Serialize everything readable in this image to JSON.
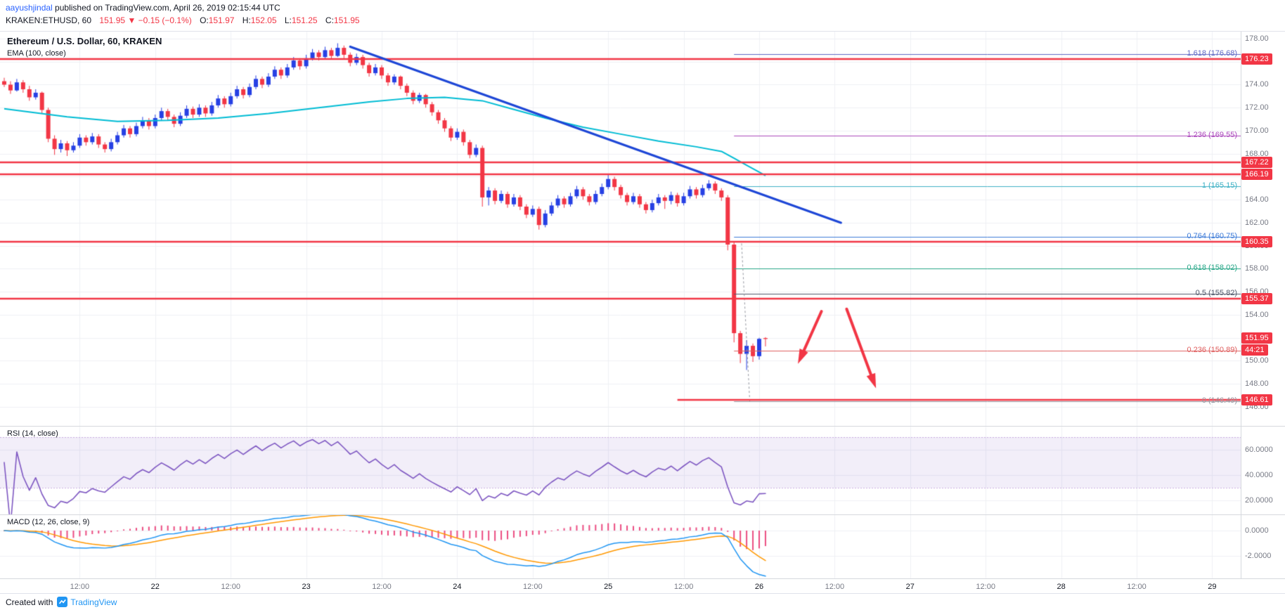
{
  "header": {
    "author": "aayushjindal",
    "published_text": " published on TradingView.com, April 26, 2019 02:15:44 UTC",
    "symbol_line": {
      "symbol": "KRAKEN:ETHUSD, 60",
      "last_price": "151.95",
      "direction_icon": "▼",
      "change": "−0.15 (−0.1%)",
      "ohlc": [
        {
          "label": "O:",
          "value": "151.97"
        },
        {
          "label": "H:",
          "value": "152.05"
        },
        {
          "label": "L:",
          "value": "151.25"
        },
        {
          "label": "C:",
          "value": "151.95"
        }
      ]
    }
  },
  "legend": {
    "title": "Ethereum / U.S. Dollar, 60, KRAKEN",
    "indicator": "EMA (100, close)",
    "rsi": "RSI (14, close)",
    "macd": "MACD (12, 26, close, 9)"
  },
  "footer": {
    "created_with": "Created with",
    "brand": "TradingView"
  },
  "chart_data": {
    "type": "candlestick",
    "symbol": "KRAKEN:ETHUSD",
    "interval": "60",
    "price_range": [
      144.3,
      178.6
    ],
    "colors": {
      "up": "#2640e4",
      "down": "#f23645",
      "ema": "#00bcd4",
      "trend": "#1d46d6",
      "level": "#f23645",
      "rsi": "#7e57c2",
      "macd": "#2196f3",
      "signal": "#ff9800",
      "hist": "#ec4d82",
      "tag_bg": "#f23645"
    },
    "candles": [
      [
        174.3,
        174.6,
        173.8,
        174.0
      ],
      [
        174.0,
        174.3,
        173.2,
        173.5
      ],
      [
        173.5,
        174.5,
        173.4,
        174.2
      ],
      [
        174.2,
        174.4,
        173.3,
        173.6
      ],
      [
        173.6,
        173.9,
        172.6,
        172.9
      ],
      [
        172.9,
        173.6,
        172.7,
        173.3
      ],
      [
        173.3,
        173.4,
        171.5,
        171.8
      ],
      [
        171.8,
        172.0,
        169.0,
        169.3
      ],
      [
        169.3,
        169.6,
        167.9,
        168.4
      ],
      [
        168.4,
        169.2,
        168.1,
        168.9
      ],
      [
        168.9,
        169.1,
        167.8,
        168.3
      ],
      [
        168.3,
        169.0,
        168.1,
        168.7
      ],
      [
        168.7,
        169.7,
        168.5,
        169.4
      ],
      [
        169.4,
        169.6,
        168.7,
        169.0
      ],
      [
        169.0,
        169.8,
        168.8,
        169.5
      ],
      [
        169.5,
        169.7,
        168.5,
        168.8
      ],
      [
        168.8,
        169.0,
        168.1,
        168.4
      ],
      [
        168.4,
        169.3,
        168.2,
        169.0
      ],
      [
        169.0,
        169.9,
        168.8,
        169.6
      ],
      [
        169.6,
        170.5,
        169.4,
        170.2
      ],
      [
        170.2,
        170.4,
        169.4,
        169.7
      ],
      [
        169.7,
        170.7,
        169.5,
        170.4
      ],
      [
        170.4,
        171.2,
        170.2,
        170.9
      ],
      [
        170.9,
        171.1,
        170.1,
        170.4
      ],
      [
        170.4,
        171.4,
        170.2,
        171.1
      ],
      [
        171.1,
        172.0,
        170.9,
        171.7
      ],
      [
        171.7,
        171.9,
        170.9,
        171.2
      ],
      [
        171.2,
        171.4,
        170.3,
        170.6
      ],
      [
        170.6,
        171.6,
        170.4,
        171.3
      ],
      [
        171.3,
        172.2,
        171.1,
        171.9
      ],
      [
        171.9,
        172.1,
        171.1,
        171.4
      ],
      [
        171.4,
        172.3,
        171.2,
        172.0
      ],
      [
        172.0,
        172.2,
        171.2,
        171.5
      ],
      [
        171.5,
        172.5,
        171.3,
        172.2
      ],
      [
        172.2,
        173.1,
        172.0,
        172.8
      ],
      [
        172.8,
        173.0,
        172.0,
        172.3
      ],
      [
        172.3,
        173.3,
        172.1,
        173.0
      ],
      [
        173.0,
        173.9,
        172.8,
        173.6
      ],
      [
        173.6,
        173.8,
        172.8,
        173.1
      ],
      [
        173.1,
        174.1,
        172.9,
        173.8
      ],
      [
        173.8,
        174.8,
        173.6,
        174.5
      ],
      [
        174.5,
        174.7,
        173.7,
        174.0
      ],
      [
        174.0,
        175.0,
        173.8,
        174.7
      ],
      [
        174.7,
        175.6,
        174.5,
        175.3
      ],
      [
        175.3,
        175.5,
        174.5,
        174.8
      ],
      [
        174.8,
        175.8,
        174.6,
        175.5
      ],
      [
        175.5,
        176.4,
        175.3,
        176.1
      ],
      [
        176.1,
        176.3,
        175.3,
        175.6
      ],
      [
        175.6,
        176.6,
        175.4,
        176.3
      ],
      [
        176.3,
        177.1,
        176.1,
        176.8
      ],
      [
        176.8,
        177.0,
        176.1,
        176.4
      ],
      [
        176.4,
        177.3,
        176.2,
        177.0
      ],
      [
        177.0,
        177.2,
        176.2,
        176.5
      ],
      [
        176.5,
        177.6,
        176.4,
        177.2
      ],
      [
        177.2,
        177.4,
        176.3,
        176.6
      ],
      [
        176.6,
        176.8,
        175.6,
        175.9
      ],
      [
        175.9,
        176.7,
        175.7,
        176.4
      ],
      [
        176.4,
        176.6,
        175.4,
        175.7
      ],
      [
        175.7,
        175.9,
        174.7,
        175.0
      ],
      [
        175.0,
        175.8,
        174.8,
        175.5
      ],
      [
        175.5,
        175.7,
        174.5,
        174.8
      ],
      [
        174.8,
        175.0,
        173.9,
        174.2
      ],
      [
        174.2,
        174.9,
        174.0,
        174.7
      ],
      [
        174.7,
        174.8,
        173.6,
        173.9
      ],
      [
        173.9,
        174.1,
        173.0,
        173.3
      ],
      [
        173.3,
        173.5,
        172.3,
        172.6
      ],
      [
        172.6,
        173.3,
        172.4,
        173.1
      ],
      [
        173.1,
        173.2,
        172.0,
        172.3
      ],
      [
        172.3,
        172.5,
        171.3,
        171.6
      ],
      [
        171.6,
        171.8,
        170.6,
        170.9
      ],
      [
        170.9,
        171.1,
        169.9,
        170.2
      ],
      [
        170.2,
        170.4,
        169.1,
        169.4
      ],
      [
        169.4,
        170.2,
        169.2,
        169.9
      ],
      [
        169.9,
        170.1,
        168.7,
        169.0
      ],
      [
        169.0,
        169.2,
        167.6,
        167.9
      ],
      [
        167.9,
        168.8,
        167.7,
        168.5
      ],
      [
        168.5,
        168.7,
        163.4,
        164.2
      ],
      [
        164.2,
        165.1,
        163.5,
        164.8
      ],
      [
        164.8,
        165.0,
        163.6,
        163.9
      ],
      [
        163.9,
        164.8,
        163.7,
        164.5
      ],
      [
        164.5,
        164.7,
        163.3,
        163.6
      ],
      [
        163.6,
        164.5,
        163.4,
        164.2
      ],
      [
        164.2,
        164.4,
        163.1,
        163.4
      ],
      [
        163.4,
        163.6,
        162.4,
        162.7
      ],
      [
        162.7,
        163.5,
        162.5,
        163.2
      ],
      [
        163.2,
        163.4,
        161.4,
        161.8
      ],
      [
        161.8,
        163.1,
        161.6,
        162.8
      ],
      [
        162.8,
        163.8,
        162.6,
        163.5
      ],
      [
        163.5,
        164.4,
        163.3,
        164.1
      ],
      [
        164.1,
        164.3,
        163.3,
        163.6
      ],
      [
        163.6,
        164.6,
        163.4,
        164.3
      ],
      [
        164.3,
        165.2,
        164.1,
        164.9
      ],
      [
        164.9,
        165.1,
        164.0,
        164.3
      ],
      [
        164.3,
        164.5,
        163.5,
        163.8
      ],
      [
        163.8,
        164.8,
        163.6,
        164.5
      ],
      [
        164.5,
        165.4,
        164.3,
        165.1
      ],
      [
        165.1,
        166.2,
        164.9,
        165.8
      ],
      [
        165.8,
        166.0,
        164.8,
        165.1
      ],
      [
        165.1,
        165.3,
        164.1,
        164.4
      ],
      [
        164.4,
        164.6,
        163.5,
        163.8
      ],
      [
        163.8,
        164.6,
        163.6,
        164.3
      ],
      [
        164.3,
        164.5,
        163.3,
        163.6
      ],
      [
        163.6,
        163.8,
        162.8,
        163.1
      ],
      [
        163.1,
        164.0,
        162.9,
        163.7
      ],
      [
        163.7,
        164.5,
        163.5,
        164.2
      ],
      [
        164.2,
        164.4,
        163.2,
        163.9
      ],
      [
        163.9,
        164.7,
        163.6,
        164.4
      ],
      [
        164.4,
        164.6,
        163.4,
        163.7
      ],
      [
        163.7,
        164.6,
        163.5,
        164.3
      ],
      [
        164.3,
        165.2,
        164.1,
        164.9
      ],
      [
        164.9,
        165.1,
        164.1,
        164.4
      ],
      [
        164.4,
        165.3,
        164.2,
        165.0
      ],
      [
        165.0,
        165.7,
        164.8,
        165.4
      ],
      [
        165.4,
        165.6,
        164.5,
        164.8
      ],
      [
        164.8,
        165.0,
        163.9,
        164.2
      ],
      [
        164.2,
        164.4,
        159.6,
        160.1
      ],
      [
        160.1,
        160.3,
        151.6,
        152.4
      ],
      [
        152.4,
        152.6,
        149.8,
        150.6
      ],
      [
        150.6,
        151.8,
        149.2,
        151.3
      ],
      [
        151.3,
        151.5,
        149.9,
        150.4
      ],
      [
        150.4,
        152.0,
        150.1,
        151.9
      ],
      [
        151.97,
        152.05,
        151.25,
        151.95
      ]
    ],
    "ema100_points": [
      [
        0,
        171.9
      ],
      [
        10,
        171.2
      ],
      [
        18,
        170.8
      ],
      [
        26,
        170.9
      ],
      [
        34,
        171.1
      ],
      [
        42,
        171.5
      ],
      [
        50,
        172.0
      ],
      [
        58,
        172.5
      ],
      [
        64,
        172.8
      ],
      [
        70,
        172.9
      ],
      [
        76,
        172.6
      ],
      [
        80,
        172.0
      ],
      [
        86,
        171.1
      ],
      [
        92,
        170.3
      ],
      [
        98,
        169.7
      ],
      [
        104,
        169.1
      ],
      [
        110,
        168.6
      ],
      [
        114,
        168.2
      ],
      [
        116,
        167.6
      ],
      [
        118,
        167.0
      ],
      [
        120,
        166.4
      ],
      [
        121,
        166.1
      ]
    ],
    "trendline": {
      "from": [
        55,
        177.3
      ],
      "to": [
        133,
        162.0
      ]
    },
    "fib": {
      "x_start_idx": 116,
      "levels": [
        {
          "level": "1.618",
          "price": 176.68,
          "color": "#5f69c3"
        },
        {
          "level": "1.236",
          "price": 169.55,
          "color": "#ab47bc"
        },
        {
          "level": "1",
          "price": 165.15,
          "color": "#3fb1c5"
        },
        {
          "level": "0.764",
          "price": 160.75,
          "color": "#3d7bd8"
        },
        {
          "level": "0.618",
          "price": 158.02,
          "color": "#26a687"
        },
        {
          "level": "0.5",
          "price": 155.82,
          "color": "#50586a"
        },
        {
          "level": "0.236",
          "price": 150.89,
          "color": "#df5f5f"
        },
        {
          "level": "0",
          "price": 146.49,
          "color": "#9598a1"
        }
      ],
      "dashed_anchor": {
        "from": [
          117.2,
          160.2
        ],
        "to": [
          118.5,
          146.49
        ]
      }
    },
    "levels": [
      {
        "price": 176.23,
        "from_idx": 0
      },
      {
        "price": 167.22,
        "from_idx": 0
      },
      {
        "price": 166.19,
        "from_idx": 0
      },
      {
        "price": 160.35,
        "from_idx": 0
      },
      {
        "price": 155.37,
        "from_idx": 0
      },
      {
        "price": 146.61,
        "from_idx": 107
      }
    ],
    "arrows": [
      {
        "from": [
          129.9,
          154.3
        ],
        "to": [
          126.7,
          150.4
        ]
      },
      {
        "from": [
          133.9,
          154.5
        ],
        "to": [
          138.1,
          148.3
        ]
      }
    ],
    "price_ticks": [
      178,
      176,
      174,
      172,
      170,
      168,
      166,
      164,
      162,
      160,
      158,
      156,
      154,
      152,
      150,
      148,
      146
    ],
    "price_axis_tags": [
      176.23,
      167.22,
      166.19,
      160.35,
      155.37,
      146.61
    ],
    "current": {
      "price": 151.95,
      "countdown": "44:21"
    },
    "rsi_ticks": [
      60,
      40,
      20
    ],
    "macd_ticks": [
      0,
      -2
    ],
    "time_axis": [
      {
        "idx": 12,
        "label": "12:00",
        "major": false
      },
      {
        "idx": 24,
        "label": "22",
        "major": true
      },
      {
        "idx": 36,
        "label": "12:00",
        "major": false
      },
      {
        "idx": 48,
        "label": "23",
        "major": true
      },
      {
        "idx": 60,
        "label": "12:00",
        "major": false
      },
      {
        "idx": 72,
        "label": "24",
        "major": true
      },
      {
        "idx": 84,
        "label": "12:00",
        "major": false
      },
      {
        "idx": 96,
        "label": "25",
        "major": true
      },
      {
        "idx": 108,
        "label": "12:00",
        "major": false
      },
      {
        "idx": 120,
        "label": "26",
        "major": true
      },
      {
        "idx": 132,
        "label": "12:00",
        "major": false
      },
      {
        "idx": 144,
        "label": "27",
        "major": true
      },
      {
        "idx": 156,
        "label": "12:00",
        "major": false
      },
      {
        "idx": 168,
        "label": "28",
        "major": true
      },
      {
        "idx": 180,
        "label": "12:00",
        "major": false
      },
      {
        "idx": 192,
        "label": "29",
        "major": true
      }
    ]
  }
}
